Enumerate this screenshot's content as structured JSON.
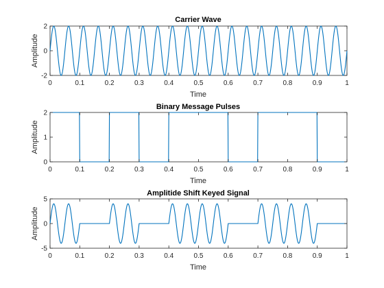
{
  "line_color": "#0072bd",
  "chart_data": [
    {
      "type": "line",
      "title": "Carrier Wave",
      "xlabel": "Time",
      "ylabel": "Amplitude",
      "xlim": [
        0,
        1
      ],
      "ylim": [
        -2,
        2
      ],
      "xticks": [
        "0",
        "0.1",
        "0.2",
        "0.3",
        "0.4",
        "0.5",
        "0.6",
        "0.7",
        "0.8",
        "0.9",
        "1"
      ],
      "xtick_values": [
        0,
        0.1,
        0.2,
        0.3,
        0.4,
        0.5,
        0.6,
        0.7,
        0.8,
        0.9,
        1
      ],
      "yticks": [
        "-2",
        "0",
        "2"
      ],
      "ytick_values": [
        -2,
        0,
        2
      ],
      "grid": false,
      "series": [
        {
          "kind": "sine",
          "amplitude": 2,
          "frequency_hz": 20,
          "x_range": [
            0,
            1
          ]
        }
      ]
    },
    {
      "type": "line",
      "title": "Binary Message Pulses",
      "xlabel": "Time",
      "ylabel": "Amplitude",
      "xlim": [
        0,
        1
      ],
      "ylim": [
        0,
        2
      ],
      "xticks": [
        "0",
        "0.1",
        "0.2",
        "0.3",
        "0.4",
        "0.5",
        "0.6",
        "0.7",
        "0.8",
        "0.9",
        "1"
      ],
      "xtick_values": [
        0,
        0.1,
        0.2,
        0.3,
        0.4,
        0.5,
        0.6,
        0.7,
        0.8,
        0.9,
        1
      ],
      "yticks": [
        "0",
        "1",
        "2"
      ],
      "ytick_values": [
        0,
        1,
        2
      ],
      "grid": false,
      "series": [
        {
          "kind": "bits",
          "bit_duration": 0.1,
          "high": 2,
          "low": 0,
          "bits": [
            1,
            0,
            1,
            0,
            1,
            1,
            0,
            1,
            1,
            0
          ]
        }
      ]
    },
    {
      "type": "line",
      "title": "Amplitide Shift Keyed Signal",
      "xlabel": "Time",
      "ylabel": "Amplitude",
      "xlim": [
        0,
        1
      ],
      "ylim": [
        -5,
        5
      ],
      "xticks": [
        "0",
        "0.1",
        "0.2",
        "0.3",
        "0.4",
        "0.5",
        "0.6",
        "0.7",
        "0.8",
        "0.9",
        "1"
      ],
      "xtick_values": [
        0,
        0.1,
        0.2,
        0.3,
        0.4,
        0.5,
        0.6,
        0.7,
        0.8,
        0.9,
        1
      ],
      "yticks": [
        "-5",
        "0",
        "5"
      ],
      "ytick_values": [
        -5,
        0,
        5
      ],
      "grid": false,
      "series": [
        {
          "kind": "ask",
          "amplitude": 4,
          "frequency_hz": 20,
          "bit_duration": 0.1,
          "bits": [
            1,
            0,
            1,
            0,
            1,
            1,
            0,
            1,
            1,
            0
          ]
        }
      ]
    }
  ]
}
